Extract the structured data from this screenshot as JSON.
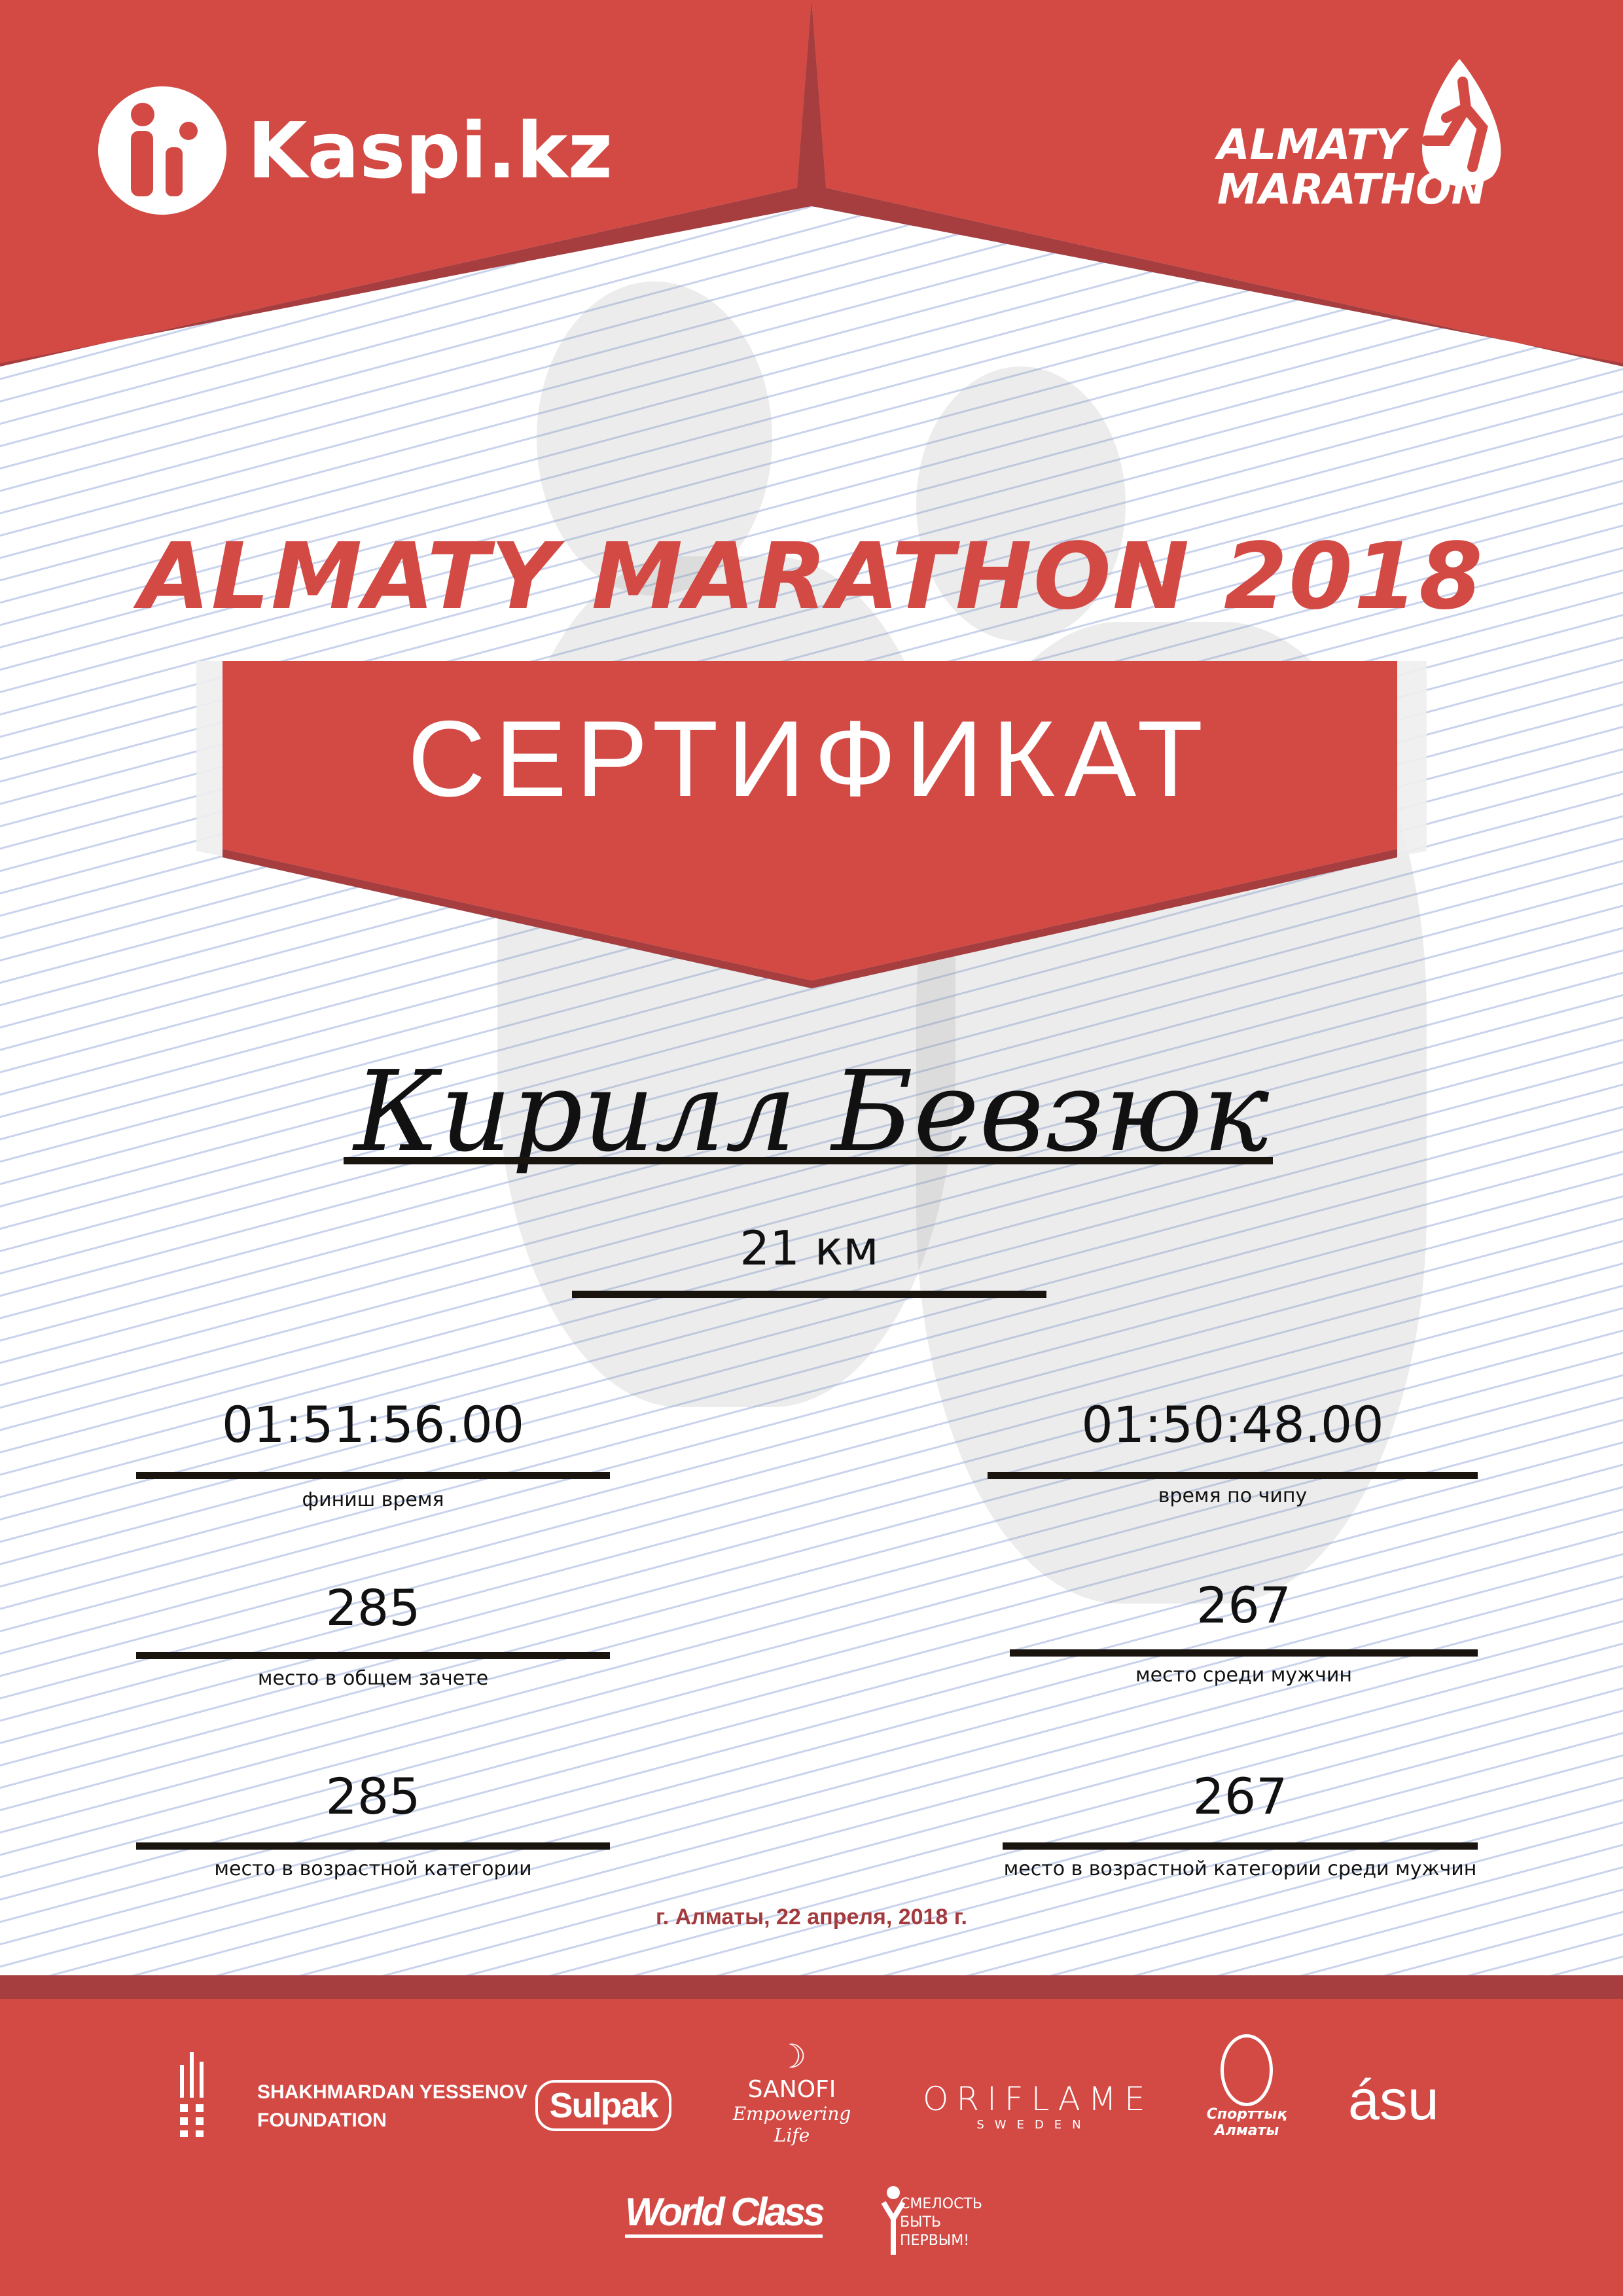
{
  "colors": {
    "brand_red": "#d34a45",
    "dark_red": "#a63d3f",
    "date_red": "#a33a3d"
  },
  "header": {
    "sponsor_logo": "Kaspi.kz",
    "event_logo_line1": "ALMATY",
    "event_logo_line2": "MARATHON"
  },
  "title": "ALMATY MARATHON 2018",
  "banner": "СЕРТИФИКАТ",
  "participant": {
    "name": "Кирилл Бевзюк",
    "distance": "21 км"
  },
  "results": [
    {
      "value": "01:51:56.00",
      "label": "финиш время"
    },
    {
      "value": "01:50:48.00",
      "label": "время по чипу"
    },
    {
      "value": "285",
      "label": "место в общем зачете"
    },
    {
      "value": "267",
      "label": "место среди мужчин"
    },
    {
      "value": "285",
      "label": "место в возрастной категории"
    },
    {
      "value": "267",
      "label": "место в возрастной категории среди мужчин"
    }
  ],
  "date": "г. Алматы, 22 апреля, 2018 г.",
  "footer": {
    "yessenov_line1": "SHAKHMARDAN YESSENOV",
    "yessenov_line2": "FOUNDATION",
    "sulpak": "Sulpak",
    "sanofi": "SANOFI",
    "sanofi_tagline": "Empowering Life",
    "oriflame": "ORIFLAME",
    "oriflame_sub": "SWEDEN",
    "sport_almaty_line1": "Спорттық",
    "sport_almaty_line2": "Алматы",
    "asu": "ásu",
    "worldclass": "World Class",
    "fund_line1": "СМЕЛОСТЬ",
    "fund_line2": "БЫТЬ",
    "fund_line3": "ПЕРВЫМ!"
  }
}
